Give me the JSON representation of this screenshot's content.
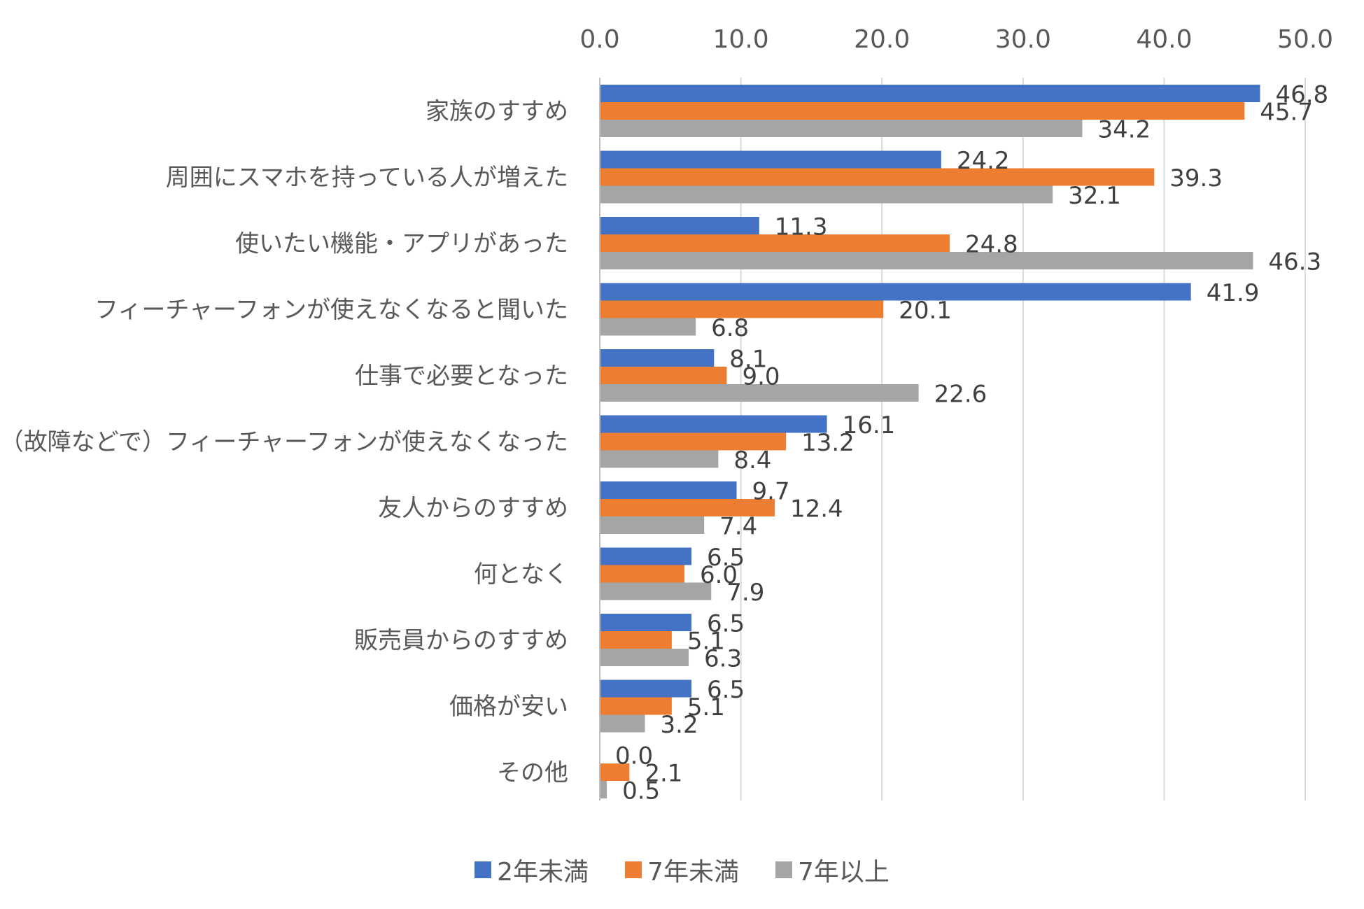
{
  "chart_data": {
    "type": "bar",
    "orientation": "horizontal",
    "categories": [
      "家族のすすめ",
      "周囲にスマホを持っている人が増えた",
      "使いたい機能・アプリがあった",
      "フィーチャーフォンが使えなくなると聞いた",
      "仕事で必要となった",
      "（故障などで）フィーチャーフォンが使えなくなった",
      "友人からのすすめ",
      "何となく",
      "販売員からのすすめ",
      "価格が安い",
      "その他"
    ],
    "series": [
      {
        "name": "2年未満",
        "color": "#4472C4",
        "values": [
          46.8,
          24.2,
          11.3,
          41.9,
          8.1,
          16.1,
          9.7,
          6.5,
          6.5,
          6.5,
          0.0
        ]
      },
      {
        "name": "7年未満",
        "color": "#ED7D31",
        "values": [
          45.7,
          39.3,
          24.8,
          20.1,
          9.0,
          13.2,
          12.4,
          6.0,
          5.1,
          5.1,
          2.1
        ]
      },
      {
        "name": "7年以上",
        "color": "#A5A5A5",
        "values": [
          34.2,
          32.1,
          46.3,
          6.8,
          22.6,
          8.4,
          7.4,
          7.9,
          6.3,
          3.2,
          0.5
        ]
      }
    ],
    "xlim": [
      0,
      50
    ],
    "ticks": [
      "0.0",
      "10.0",
      "20.0",
      "30.0",
      "40.0",
      "50.0"
    ],
    "tick_axis_position": "top",
    "grid": true,
    "legend_position": "bottom",
    "data_labels": true
  }
}
